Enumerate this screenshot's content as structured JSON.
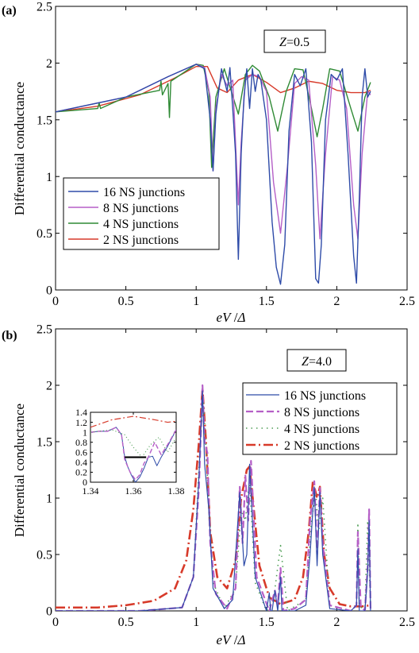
{
  "chart_data": [
    {
      "type": "line",
      "panel_label": "(a)",
      "annotation": "Z=0.5",
      "annotation_parts": {
        "var": "Z",
        "rest": "=0.5"
      },
      "xlabel_parts": {
        "a": "eV",
        "b": " /",
        "c": "Δ"
      },
      "ylabel": "Differential conductance",
      "xlim": [
        0,
        2.5
      ],
      "ylim": [
        0,
        2.5
      ],
      "xticks": [
        "0",
        "0.5",
        "1",
        "1.5",
        "2",
        "2.5"
      ],
      "yticks": [
        "0",
        "0.5",
        "1",
        "1.5",
        "2",
        "2.5"
      ],
      "legend_position": "bottom-left",
      "series": [
        {
          "name": "16 NS junctions",
          "color": "#2e4ba8",
          "x": [
            0,
            0.5,
            0.8,
            1.0,
            1.06,
            1.1,
            1.12,
            1.14,
            1.18,
            1.22,
            1.24,
            1.26,
            1.28,
            1.3,
            1.32,
            1.34,
            1.36,
            1.38,
            1.4,
            1.42,
            1.44,
            1.46,
            1.5,
            1.54,
            1.57,
            1.6,
            1.63,
            1.66,
            1.7,
            1.74,
            1.78,
            1.82,
            1.85,
            1.87,
            1.89,
            1.92,
            1.96,
            2.0,
            2.04,
            2.08,
            2.12,
            2.14,
            2.16,
            2.18,
            2.2,
            2.22,
            2.24
          ],
          "y": [
            1.57,
            1.7,
            1.88,
            1.99,
            1.95,
            1.5,
            1.05,
            1.55,
            1.95,
            1.75,
            1.96,
            1.6,
            1.2,
            0.27,
            1.2,
            1.7,
            1.95,
            1.6,
            1.95,
            1.75,
            1.9,
            1.85,
            1.5,
            0.6,
            0.2,
            0.05,
            0.4,
            1.4,
            1.9,
            1.8,
            1.95,
            1.3,
            0.1,
            0.06,
            0.4,
            1.5,
            1.9,
            1.85,
            1.95,
            1.2,
            0.3,
            0.06,
            0.8,
            1.7,
            1.95,
            1.7,
            1.75
          ]
        },
        {
          "name": "8 NS junctions",
          "color": "#b55fc7",
          "x": [
            0,
            0.5,
            0.8,
            1.0,
            1.06,
            1.1,
            1.12,
            1.14,
            1.18,
            1.22,
            1.26,
            1.3,
            1.32,
            1.35,
            1.4,
            1.45,
            1.5,
            1.55,
            1.6,
            1.65,
            1.7,
            1.75,
            1.8,
            1.85,
            1.88,
            1.92,
            1.97,
            2.02,
            2.07,
            2.12,
            2.15,
            2.18,
            2.22,
            2.24
          ],
          "y": [
            1.57,
            1.7,
            1.88,
            1.99,
            1.96,
            1.7,
            1.05,
            1.6,
            1.9,
            1.8,
            1.85,
            0.75,
            1.3,
            1.85,
            1.9,
            1.88,
            1.75,
            0.95,
            0.5,
            1.1,
            1.82,
            1.88,
            1.85,
            1.1,
            0.45,
            1.2,
            1.88,
            1.85,
            1.6,
            0.75,
            0.45,
            1.2,
            1.75,
            1.72
          ]
        },
        {
          "name": "4 NS junctions",
          "color": "#2f8a35",
          "x": [
            0,
            0.3,
            0.31,
            0.32,
            0.5,
            0.74,
            0.75,
            0.76,
            0.8,
            0.81,
            0.82,
            1.0,
            1.05,
            1.09,
            1.11,
            1.14,
            1.2,
            1.25,
            1.3,
            1.35,
            1.4,
            1.45,
            1.52,
            1.58,
            1.64,
            1.7,
            1.76,
            1.82,
            1.86,
            1.9,
            1.95,
            2.02,
            2.1,
            2.15,
            2.2,
            2.24
          ],
          "y": [
            1.57,
            1.6,
            1.65,
            1.6,
            1.7,
            1.76,
            1.84,
            1.72,
            1.82,
            1.52,
            1.84,
            1.99,
            1.98,
            1.75,
            1.08,
            1.7,
            1.95,
            1.75,
            1.55,
            1.9,
            1.98,
            1.93,
            1.7,
            1.4,
            1.75,
            1.95,
            1.94,
            1.6,
            1.35,
            1.6,
            1.95,
            1.93,
            1.6,
            1.4,
            1.7,
            1.83
          ]
        },
        {
          "name": "2 NS junctions",
          "color": "#d73a2a",
          "x": [
            0,
            0.3,
            0.6,
            0.85,
            1.0,
            1.08,
            1.15,
            1.22,
            1.3,
            1.4,
            1.5,
            1.6,
            1.7,
            1.8,
            1.9,
            2.0,
            2.1,
            2.2,
            2.24
          ],
          "y": [
            1.57,
            1.62,
            1.72,
            1.87,
            1.97,
            1.97,
            1.78,
            1.74,
            1.85,
            1.9,
            1.83,
            1.74,
            1.78,
            1.84,
            1.82,
            1.76,
            1.74,
            1.74,
            1.76
          ]
        }
      ]
    },
    {
      "type": "line",
      "panel_label": "(b)",
      "annotation": "Z=4.0",
      "annotation_parts": {
        "var": "Z",
        "rest": "=4.0"
      },
      "xlabel_parts": {
        "a": "eV",
        "b": " /",
        "c": "Δ"
      },
      "ylabel": "Differential conductance",
      "xlim": [
        0,
        2.5
      ],
      "ylim": [
        0,
        2.5
      ],
      "xticks": [
        "0",
        "0.5",
        "1",
        "1.5",
        "2",
        "2.5"
      ],
      "yticks": [
        "0",
        "0.5",
        "1",
        "1.5",
        "2",
        "2.5"
      ],
      "legend_position": "top-right",
      "series": [
        {
          "name": "16 NS junctions",
          "color": "#2e4ba8",
          "dash": "none",
          "width": 1.2,
          "x": [
            0,
            0.6,
            0.9,
            0.98,
            1.02,
            1.045,
            1.06,
            1.09,
            1.12,
            1.2,
            1.26,
            1.31,
            1.34,
            1.36,
            1.38,
            1.42,
            1.5,
            1.52,
            1.53,
            1.54,
            1.56,
            1.58,
            1.6,
            1.61,
            1.62,
            1.7,
            1.78,
            1.81,
            1.84,
            1.86,
            1.88,
            1.9,
            1.95,
            2.1,
            2.14,
            2.15,
            2.16,
            2.18,
            2.2,
            2.22,
            2.23,
            2.24
          ],
          "y": [
            0.0,
            0.0,
            0.03,
            0.3,
            1.2,
            1.95,
            1.3,
            0.9,
            0.2,
            0.02,
            0.1,
            1.05,
            0.4,
            0.5,
            1.3,
            0.3,
            0.0,
            0.16,
            0.0,
            0.0,
            0.18,
            0.0,
            0.3,
            0.0,
            0.0,
            0.0,
            0.05,
            0.5,
            1.1,
            0.4,
            1.05,
            0.5,
            0.02,
            0.0,
            0.05,
            0.55,
            0.0,
            0.0,
            0.0,
            0.35,
            0.8,
            0.0
          ]
        },
        {
          "name": "8 NS junctions",
          "color": "#b55fc7",
          "dash": "9 4",
          "width": 2.2,
          "x": [
            0,
            0.6,
            0.9,
            0.98,
            1.02,
            1.045,
            1.06,
            1.08,
            1.1,
            1.14,
            1.22,
            1.28,
            1.31,
            1.33,
            1.35,
            1.37,
            1.39,
            1.43,
            1.52,
            1.56,
            1.58,
            1.6,
            1.62,
            1.7,
            1.78,
            1.81,
            1.84,
            1.86,
            1.88,
            1.9,
            1.95,
            2.1,
            2.14,
            2.15,
            2.17,
            2.2,
            2.22,
            2.23,
            2.24
          ],
          "y": [
            0.0,
            0.0,
            0.03,
            0.3,
            1.1,
            2.0,
            1.5,
            1.4,
            0.6,
            0.15,
            0.02,
            0.2,
            1.1,
            0.6,
            1.2,
            0.8,
            1.33,
            0.3,
            0.0,
            0.18,
            0.05,
            0.38,
            0.0,
            0.02,
            0.1,
            0.8,
            1.15,
            0.5,
            1.1,
            0.6,
            0.05,
            0.0,
            0.05,
            0.7,
            0.05,
            0.0,
            0.4,
            0.9,
            0.02
          ]
        },
        {
          "name": "4 NS junctions",
          "color": "#4f9e56",
          "dash": "1.5 5",
          "width": 1.6,
          "x": [
            0,
            0.6,
            0.9,
            0.98,
            1.03,
            1.05,
            1.08,
            1.12,
            1.2,
            1.28,
            1.32,
            1.35,
            1.38,
            1.42,
            1.5,
            1.55,
            1.6,
            1.65,
            1.78,
            1.82,
            1.85,
            1.87,
            1.9,
            1.95,
            2.1,
            2.14,
            2.15,
            2.16,
            2.2,
            2.22,
            2.24
          ],
          "y": [
            0.0,
            0.0,
            0.03,
            0.3,
            1.5,
            1.9,
            1.2,
            0.25,
            0.02,
            0.2,
            0.9,
            0.8,
            1.15,
            0.25,
            0.0,
            0.1,
            0.58,
            0.0,
            0.1,
            0.8,
            1.05,
            0.7,
            1.0,
            0.05,
            0.0,
            0.05,
            0.78,
            0.05,
            0.0,
            0.8,
            0.05
          ]
        },
        {
          "name": "2 NS junctions",
          "color": "#d73a2a",
          "dash": "12 4 2 4",
          "width": 2.6,
          "x": [
            0,
            0.3,
            0.5,
            0.7,
            0.85,
            0.93,
            0.98,
            1.02,
            1.045,
            1.07,
            1.1,
            1.15,
            1.22,
            1.28,
            1.32,
            1.36,
            1.38,
            1.41,
            1.45,
            1.52,
            1.6,
            1.7,
            1.76,
            1.8,
            1.83,
            1.86,
            1.88,
            1.91,
            1.95,
            2.02,
            2.1,
            2.18,
            2.24
          ],
          "y": [
            0.03,
            0.03,
            0.05,
            0.09,
            0.2,
            0.45,
            0.9,
            1.5,
            1.97,
            1.5,
            0.7,
            0.3,
            0.2,
            0.45,
            1.0,
            1.25,
            1.28,
            0.9,
            0.4,
            0.12,
            0.06,
            0.1,
            0.3,
            0.7,
            1.15,
            1.0,
            1.1,
            0.5,
            0.2,
            0.06,
            0.04,
            0.04,
            0.05
          ]
        }
      ]
    },
    {
      "type": "line",
      "role": "inset of (b)",
      "xlim": [
        1.34,
        1.38
      ],
      "ylim": [
        0,
        1.4
      ],
      "xticks": [
        "1.34",
        "1.36",
        "1.38"
      ],
      "yticks": [
        "0",
        "0.2",
        "0.4",
        "0.6",
        "0.8",
        "1",
        "1.2",
        "1.4"
      ],
      "series": [
        {
          "color": "#2e4ba8",
          "dash": "none",
          "width": 1,
          "x": [
            1.34,
            1.344,
            1.348,
            1.352,
            1.3545,
            1.356,
            1.3575,
            1.359,
            1.361,
            1.363,
            1.365,
            1.367,
            1.369,
            1.371,
            1.373,
            1.376,
            1.38
          ],
          "y": [
            1.0,
            1.02,
            1.02,
            1.1,
            0.95,
            0.5,
            0.3,
            0.15,
            0.0,
            0.1,
            0.28,
            0.5,
            0.52,
            0.33,
            0.5,
            0.72,
            1.05
          ]
        },
        {
          "color": "#b55fc7",
          "dash": "6 3",
          "width": 1.4,
          "x": [
            1.34,
            1.344,
            1.348,
            1.352,
            1.3545,
            1.356,
            1.3585,
            1.361,
            1.363,
            1.365,
            1.367,
            1.37,
            1.373,
            1.376,
            1.38
          ],
          "y": [
            1.0,
            1.02,
            1.02,
            1.1,
            0.95,
            0.45,
            0.2,
            0.05,
            0.15,
            0.38,
            0.5,
            0.8,
            0.55,
            0.75,
            1.05
          ]
        },
        {
          "color": "#4f9e56",
          "dash": "1 3",
          "width": 1.2,
          "x": [
            1.34,
            1.35,
            1.356,
            1.36,
            1.364,
            1.368,
            1.372,
            1.376,
            1.38
          ],
          "y": [
            1.0,
            1.05,
            0.95,
            0.7,
            0.5,
            0.75,
            0.9,
            0.6,
            0.9
          ]
        },
        {
          "color": "#d73a2a",
          "dash": "8 3 2 3",
          "width": 1.2,
          "x": [
            1.34,
            1.35,
            1.36,
            1.37,
            1.376,
            1.38
          ],
          "y": [
            1.1,
            1.25,
            1.32,
            1.25,
            1.2,
            1.22
          ]
        }
      ],
      "marker": {
        "type": "horizontal-bar",
        "x": [
          1.356,
          1.366
        ],
        "y": 0.5,
        "color": "#000000"
      }
    }
  ]
}
